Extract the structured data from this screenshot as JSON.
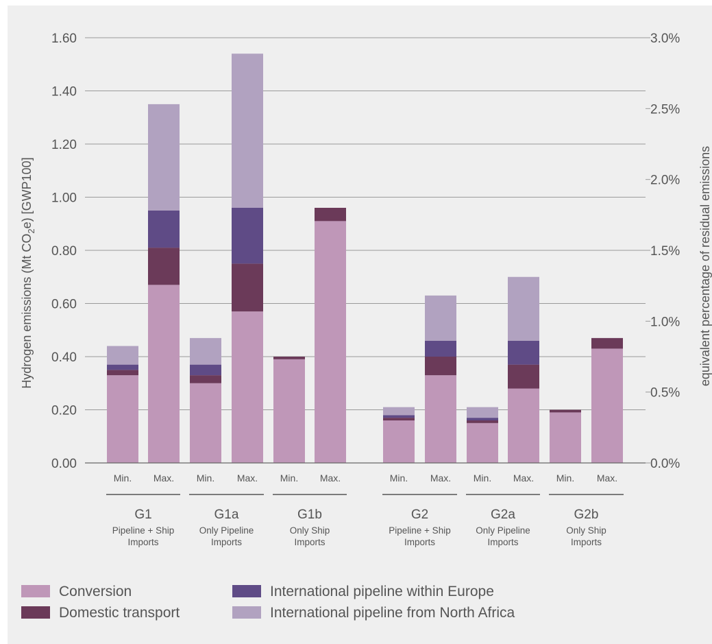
{
  "chart_data": {
    "type": "bar",
    "stacked": true,
    "categories": [
      {
        "group": "G1",
        "case": "Min."
      },
      {
        "group": "G1",
        "case": "Max."
      },
      {
        "group": "G1a",
        "case": "Min."
      },
      {
        "group": "G1a",
        "case": "Max."
      },
      {
        "group": "G1b",
        "case": "Min."
      },
      {
        "group": "G1b",
        "case": "Max."
      },
      {
        "group": "G2",
        "case": "Min."
      },
      {
        "group": "G2",
        "case": "Max."
      },
      {
        "group": "G2a",
        "case": "Min."
      },
      {
        "group": "G2a",
        "case": "Max."
      },
      {
        "group": "G2b",
        "case": "Min."
      },
      {
        "group": "G2b",
        "case": "Max."
      }
    ],
    "groups": [
      {
        "name": "G1",
        "subtitle": [
          "Pipeline + Ship",
          "Imports"
        ]
      },
      {
        "name": "G1a",
        "subtitle": [
          "Only Pipeline",
          "Imports"
        ]
      },
      {
        "name": "G1b",
        "subtitle": [
          "Only Ship",
          "Imports"
        ]
      },
      {
        "name": "G2",
        "subtitle": [
          "Pipeline + Ship",
          "Imports"
        ]
      },
      {
        "name": "G2a",
        "subtitle": [
          "Only Pipeline",
          "Imports"
        ]
      },
      {
        "name": "G2b",
        "subtitle": [
          "Only Ship",
          "Imports"
        ]
      }
    ],
    "series": [
      {
        "name": "Conversion",
        "color": "#bf97b8",
        "values": [
          0.33,
          0.67,
          0.3,
          0.57,
          0.39,
          0.91,
          0.16,
          0.33,
          0.15,
          0.28,
          0.19,
          0.43
        ]
      },
      {
        "name": "Domestic transport",
        "color": "#6b3a59",
        "values": [
          0.02,
          0.14,
          0.03,
          0.18,
          0.01,
          0.05,
          0.01,
          0.07,
          0.01,
          0.09,
          0.01,
          0.04
        ]
      },
      {
        "name": "International pipeline within Europe",
        "color": "#5f4b86",
        "values": [
          0.02,
          0.14,
          0.04,
          0.21,
          0.0,
          0.0,
          0.01,
          0.06,
          0.01,
          0.09,
          0.0,
          0.0
        ]
      },
      {
        "name": "International pipeline from North Africa",
        "color": "#b1a2c0",
        "values": [
          0.07,
          0.4,
          0.1,
          0.58,
          0.0,
          0.0,
          0.03,
          0.17,
          0.04,
          0.24,
          0.0,
          0.0
        ]
      }
    ],
    "ylabel_parts": [
      "Hydrogen emissions (Mt CO",
      "2",
      "e) [GWP100]"
    ],
    "y2label": "equivalent percentage of residual emissions",
    "ylim": [
      0,
      1.6
    ],
    "y_ticks": [
      "0.00",
      "0.20",
      "0.40",
      "0.60",
      "0.80",
      "1.00",
      "1.20",
      "1.40",
      "1.60"
    ],
    "y2lim": [
      0,
      3.0
    ],
    "y2_ticks": [
      "0.0%",
      "0.5%",
      "1.0%",
      "1.5%",
      "2.0%",
      "2.5%",
      "3.0%"
    ],
    "grid": true,
    "legend_position": "bottom"
  }
}
